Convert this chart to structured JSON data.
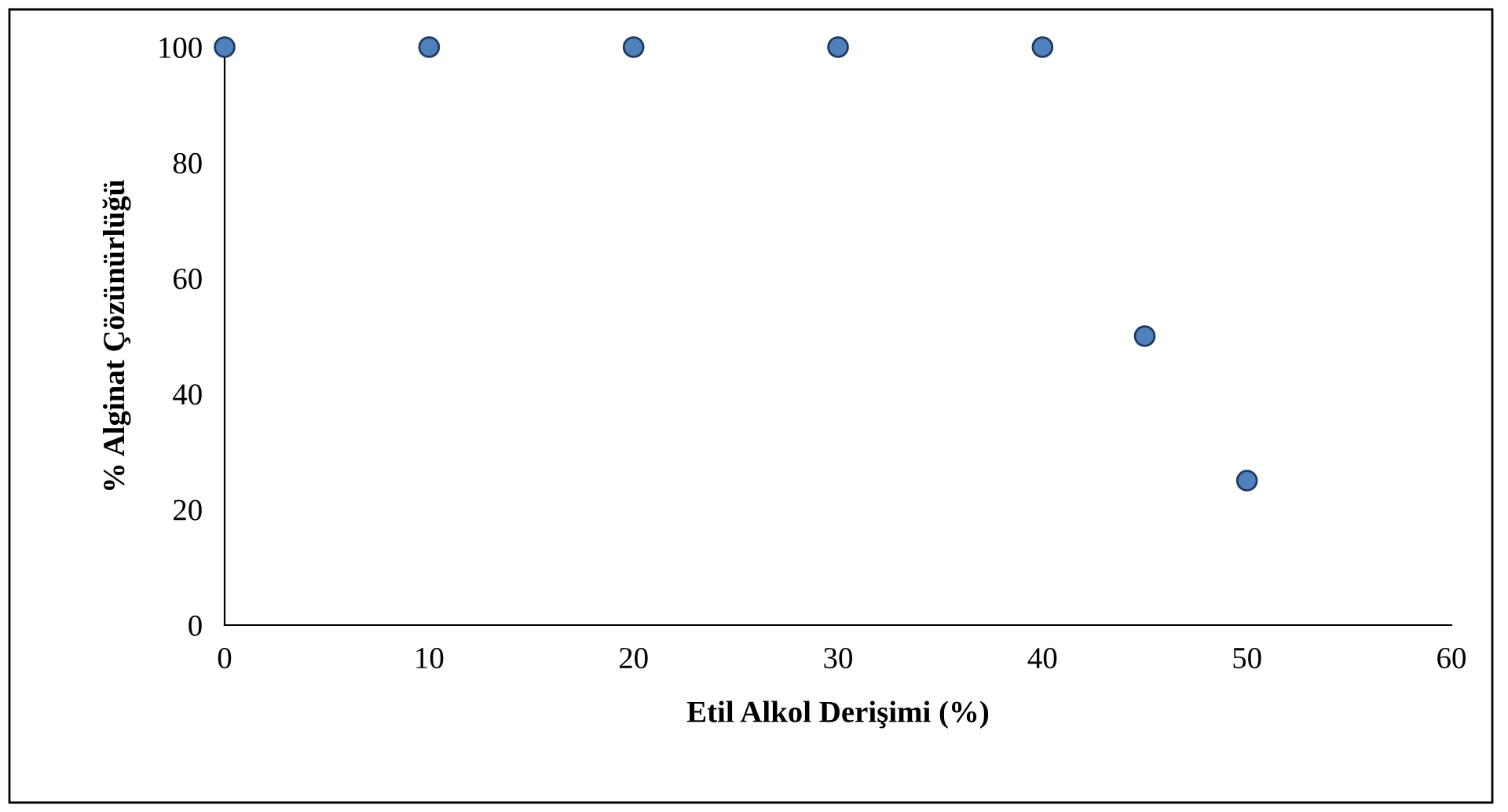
{
  "chart_data": {
    "type": "scatter",
    "xlabel": "Etil Alkol Derişimi (%)",
    "ylabel": "% Alginat Çözünürlüğü",
    "x": [
      0,
      10,
      20,
      30,
      40,
      45,
      50
    ],
    "series": [
      {
        "color": "#4f81bd",
        "values": [
          100,
          100,
          100,
          100,
          100,
          50,
          25
        ]
      }
    ],
    "xlim": [
      0,
      60
    ],
    "xticks": [
      0,
      10,
      20,
      30,
      40,
      50,
      60
    ],
    "ylim": [
      0,
      100
    ],
    "yticks": [
      0,
      20,
      40,
      60,
      80,
      100
    ],
    "marker": "circle",
    "grid": false,
    "legend": false
  }
}
